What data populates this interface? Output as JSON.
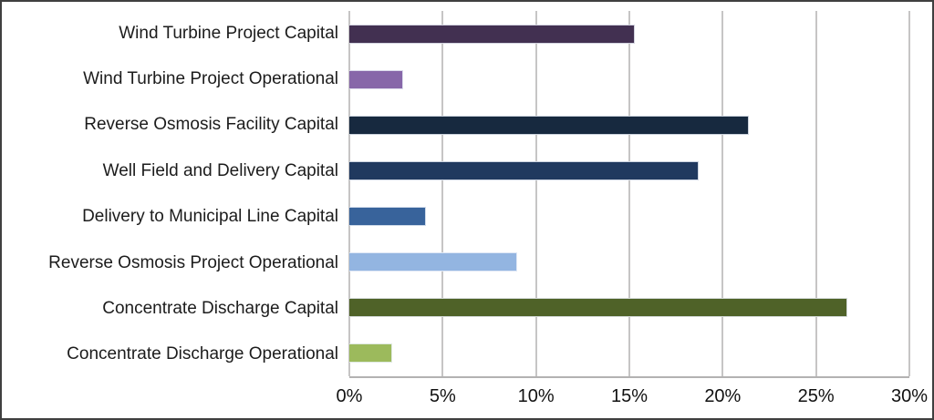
{
  "chart_data": {
    "type": "bar",
    "orientation": "horizontal",
    "title": "",
    "xlabel": "",
    "ylabel": "",
    "legend": "none",
    "grid": "vertical",
    "categories": [
      "Wind Turbine Project Capital",
      "Wind Turbine Project Operational",
      "Reverse Osmosis Facility Capital",
      "Well Field and Delivery Capital",
      "Delivery to Municipal Line Capital",
      "Reverse Osmosis Project Operational",
      "Concentrate Discharge Capital",
      "Concentrate Discharge Operational"
    ],
    "values": [
      15.3,
      2.9,
      21.4,
      18.7,
      4.1,
      9.0,
      26.7,
      2.3
    ],
    "unit": "%",
    "bar_colors": [
      "#423051",
      "#8767a9",
      "#17293f",
      "#20395f",
      "#38639b",
      "#93b5e1",
      "#4f6228",
      "#9cba5c"
    ],
    "xlim": [
      0,
      30
    ],
    "x_ticks": [
      0,
      5,
      10,
      15,
      20,
      25,
      30
    ],
    "x_tick_labels": [
      "0%",
      "5%",
      "10%",
      "15%",
      "20%",
      "25%",
      "30%"
    ]
  },
  "styles": {
    "grid_color": "#c6c5c5",
    "axis_line_color": "#b3b2b2",
    "text_color": "#1c1c1c",
    "frame_border_color": "#3f3f3f",
    "background": "#ffffff"
  }
}
